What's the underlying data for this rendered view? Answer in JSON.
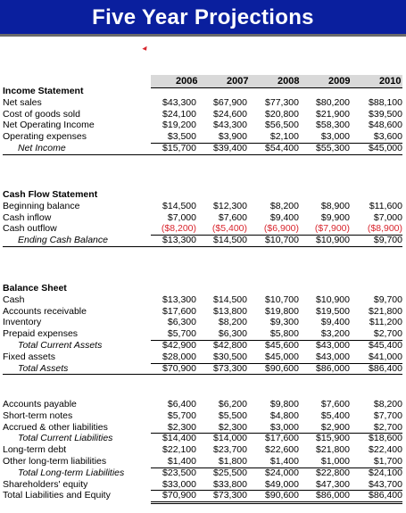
{
  "title": "Five Year Projections",
  "years": [
    "2006",
    "2007",
    "2008",
    "2009",
    "2010"
  ],
  "colors": {
    "banner": "#0a1f9e",
    "negative": "#d8262e",
    "header_fill": "#d9d9d9"
  },
  "sections": [
    {
      "heading": "Income Statement",
      "rows": [
        {
          "label": "Net sales",
          "values": [
            "$43,300",
            "$67,900",
            "$77,300",
            "$80,200",
            "$88,100"
          ]
        },
        {
          "label": "Cost of goods sold",
          "values": [
            "$24,100",
            "$24,600",
            "$20,800",
            "$21,900",
            "$39,500"
          ]
        },
        {
          "label": "Net Operating Income",
          "values": [
            "$19,200",
            "$43,300",
            "$56,500",
            "$58,300",
            "$48,600"
          ]
        },
        {
          "label": "Operating expenses",
          "values": [
            "$3,500",
            "$3,900",
            "$2,100",
            "$3,000",
            "$3,600"
          ]
        },
        {
          "label": "Net Income",
          "values": [
            "$15,700",
            "$39,400",
            "$54,400",
            "$55,300",
            "$45,000"
          ],
          "style": "italic"
        }
      ]
    },
    {
      "heading": "Cash Flow Statement",
      "rows": [
        {
          "label": "Beginning balance",
          "values": [
            "$14,500",
            "$12,300",
            "$8,200",
            "$8,900",
            "$11,600"
          ]
        },
        {
          "label": "Cash inflow",
          "values": [
            "$7,000",
            "$7,600",
            "$9,400",
            "$9,900",
            "$7,000"
          ]
        },
        {
          "label": "Cash outflow",
          "values": [
            "($8,200)",
            "($5,400)",
            "($6,900)",
            "($7,900)",
            "($8,900)"
          ],
          "negative": true
        },
        {
          "label": "Ending Cash Balance",
          "values": [
            "$13,300",
            "$14,500",
            "$10,700",
            "$10,900",
            "$9,700"
          ],
          "style": "italic"
        }
      ]
    },
    {
      "heading": "Balance Sheet",
      "rows": [
        {
          "label": "Cash",
          "values": [
            "$13,300",
            "$14,500",
            "$10,700",
            "$10,900",
            "$9,700"
          ]
        },
        {
          "label": "Accounts receivable",
          "values": [
            "$17,600",
            "$13,800",
            "$19,800",
            "$19,500",
            "$21,800"
          ]
        },
        {
          "label": "Inventory",
          "values": [
            "$6,300",
            "$8,200",
            "$9,300",
            "$9,400",
            "$11,200"
          ]
        },
        {
          "label": "Prepaid expenses",
          "values": [
            "$5,700",
            "$6,300",
            "$5,800",
            "$3,200",
            "$2,700"
          ]
        },
        {
          "label": "Total Current Assets",
          "values": [
            "$42,900",
            "$42,800",
            "$45,600",
            "$43,000",
            "$45,400"
          ],
          "style": "italic"
        },
        {
          "label": "Fixed assets",
          "values": [
            "$28,000",
            "$30,500",
            "$45,000",
            "$43,000",
            "$41,000"
          ]
        },
        {
          "label": "Total Assets",
          "values": [
            "$70,900",
            "$73,300",
            "$90,600",
            "$86,000",
            "$86,400"
          ],
          "style": "italic"
        }
      ]
    },
    {
      "heading": "",
      "rows": [
        {
          "label": "Accounts payable",
          "values": [
            "$6,400",
            "$6,200",
            "$9,800",
            "$7,600",
            "$8,200"
          ]
        },
        {
          "label": "Short-term notes",
          "values": [
            "$5,700",
            "$5,500",
            "$4,800",
            "$5,400",
            "$7,700"
          ]
        },
        {
          "label": "Accrued & other liabilities",
          "values": [
            "$2,300",
            "$2,300",
            "$3,000",
            "$2,900",
            "$2,700"
          ]
        },
        {
          "label": "Total Current Liabilities",
          "values": [
            "$14,400",
            "$14,000",
            "$17,600",
            "$15,900",
            "$18,600"
          ],
          "style": "italic"
        },
        {
          "label": "Long-term debt",
          "values": [
            "$22,100",
            "$23,700",
            "$22,600",
            "$21,800",
            "$22,400"
          ]
        },
        {
          "label": "Other long-term liabilities",
          "values": [
            "$1,400",
            "$1,800",
            "$1,400",
            "$1,000",
            "$1,700"
          ]
        },
        {
          "label": "Total Long-term Liabilities",
          "values": [
            "$23,500",
            "$25,500",
            "$24,000",
            "$22,800",
            "$24,100"
          ],
          "style": "italic"
        },
        {
          "label": "Shareholders' equity",
          "values": [
            "$33,000",
            "$33,800",
            "$49,000",
            "$47,300",
            "$43,700"
          ]
        },
        {
          "label": "Total Liabilities and Equity",
          "values": [
            "$70,900",
            "$73,300",
            "$90,600",
            "$86,000",
            "$86,400"
          ]
        }
      ]
    }
  ]
}
